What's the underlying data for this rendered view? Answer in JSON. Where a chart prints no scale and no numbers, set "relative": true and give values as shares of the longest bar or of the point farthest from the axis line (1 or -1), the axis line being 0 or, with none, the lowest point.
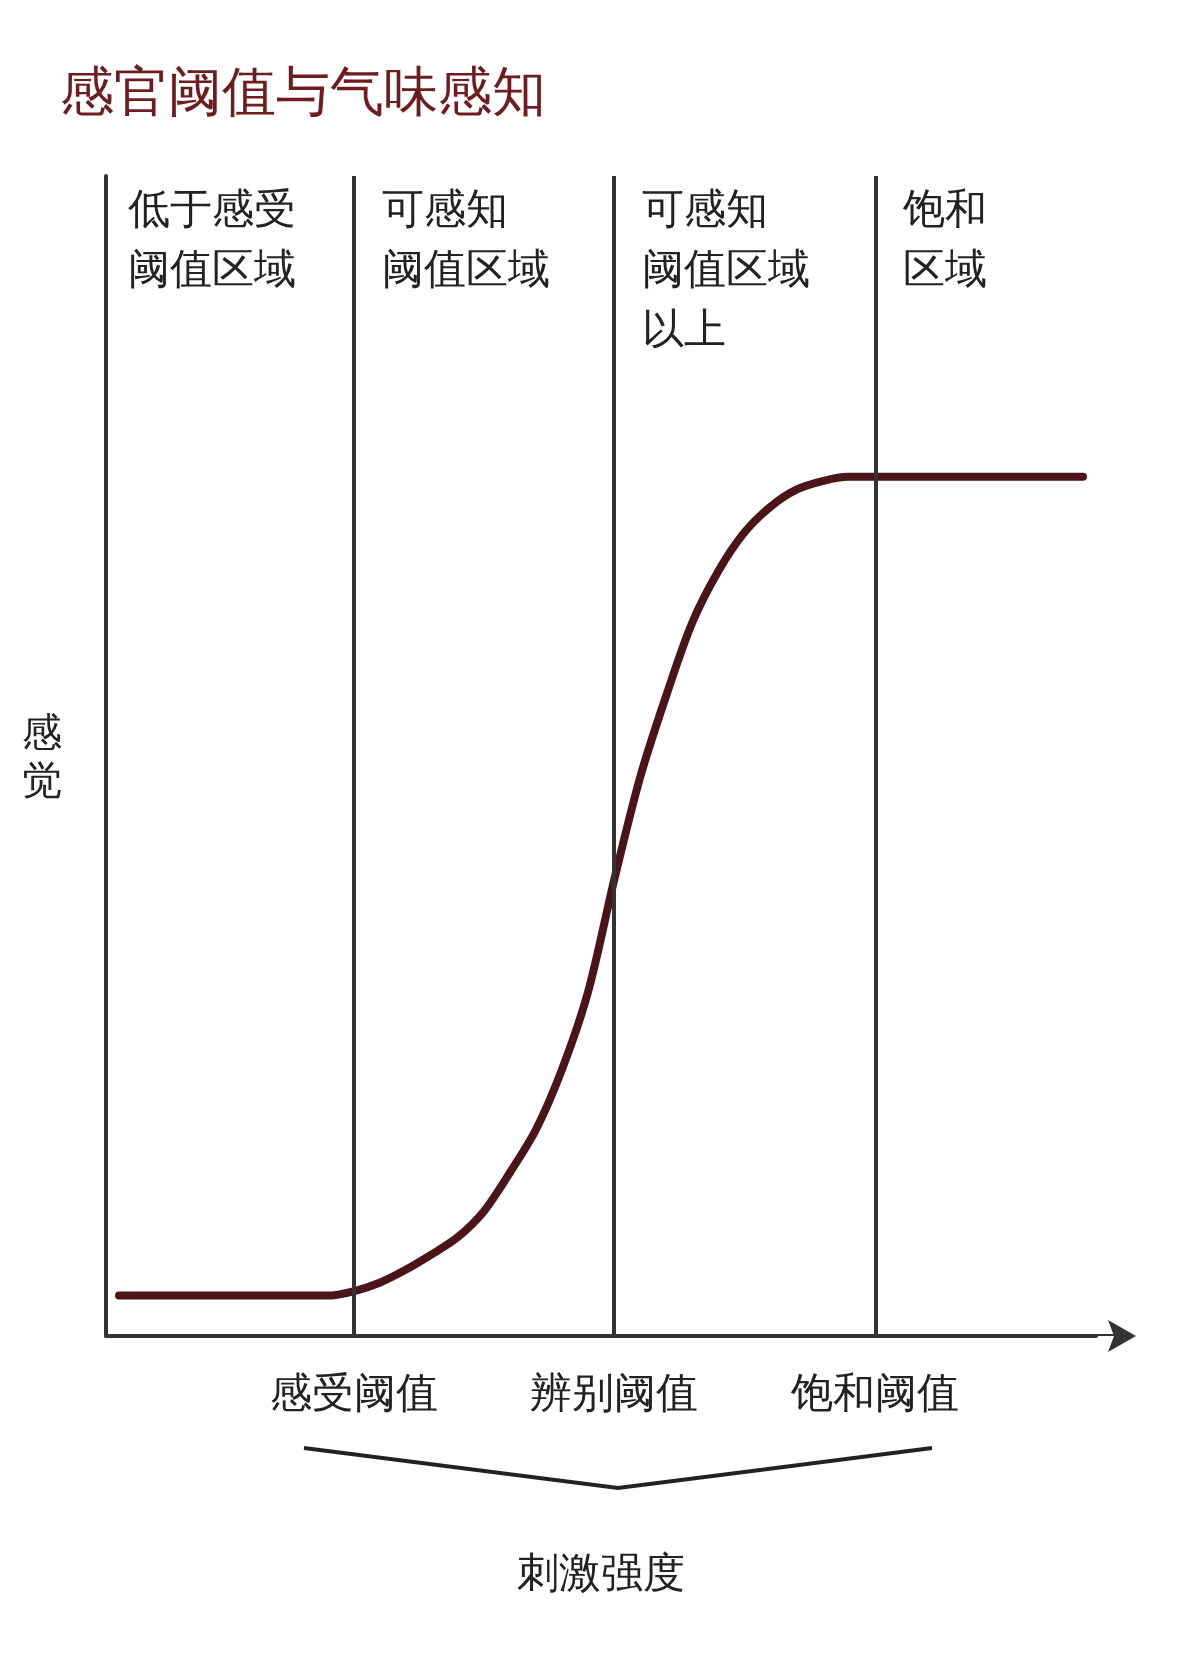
{
  "chart_data": {
    "type": "line",
    "title": "感官阈值与气味感知",
    "xlabel": "刺激强度",
    "ylabel": "感觉",
    "relative": true,
    "categories": [
      null,
      null,
      null,
      null,
      null,
      null,
      null,
      null,
      null,
      "感受阈值",
      null,
      null,
      null,
      null,
      null,
      null,
      null,
      null,
      null,
      "辨别阈值",
      null,
      null,
      null,
      null,
      null,
      null,
      null,
      null,
      null,
      "饱和阈值",
      null,
      null,
      null,
      null,
      null,
      null,
      null,
      null
    ],
    "series": [
      {
        "color": "#4a1418",
        "values": [
          0.047,
          0.047,
          0.047,
          0.047,
          0.047,
          0.047,
          0.047,
          0.047,
          0.047,
          0.052,
          0.062,
          0.077,
          0.095,
          0.115,
          0.145,
          0.19,
          0.24,
          0.31,
          0.4,
          0.53,
          0.65,
          0.745,
          0.83,
          0.89,
          0.935,
          0.965,
          0.985,
          0.995,
          1,
          1,
          1,
          1,
          1,
          1,
          1,
          1,
          1,
          1
        ]
      }
    ],
    "ref_lines": [
      {
        "axis": "x",
        "value": "感受阈值"
      },
      {
        "axis": "x",
        "value": "辨别阈值"
      },
      {
        "axis": "x",
        "value": "饱和阈值"
      }
    ],
    "annotations": [
      "低于感受",
      "阈值区域",
      "可感知",
      "阈值区域",
      "可感知",
      "阈值区域",
      "以上",
      "饱和",
      "区域"
    ],
    "grid": false,
    "marker": "none",
    "line_style": "solid"
  }
}
